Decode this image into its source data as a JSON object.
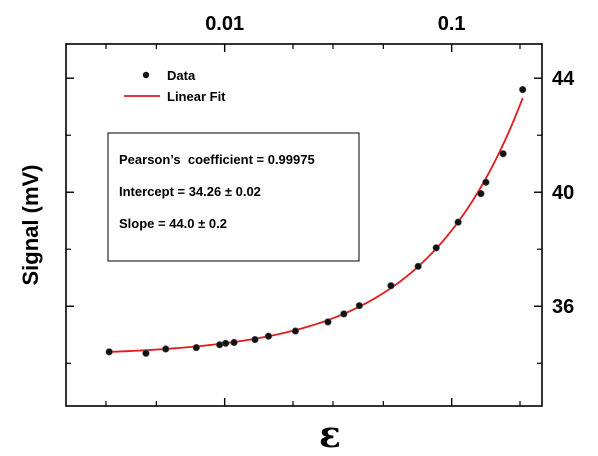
{
  "chart_data": {
    "type": "scatter",
    "x_scale": "log",
    "xlim": [
      0.002,
      0.25
    ],
    "ylim": [
      32.5,
      45.2
    ],
    "xlabel": "ε",
    "ylabel": "Signal (mV)",
    "x_tick_labels": [
      {
        "value": 0.01,
        "label": "0.01"
      },
      {
        "value": 0.1,
        "label": "0.1"
      }
    ],
    "x_minor_ticks": [
      0.003,
      0.005,
      0.02,
      0.03,
      0.05,
      0.2
    ],
    "y_tick_labels": [
      {
        "value": 36,
        "label": "36"
      },
      {
        "value": 40,
        "label": "40"
      },
      {
        "value": 44,
        "label": "44"
      }
    ],
    "y_minor_ticks": [
      34,
      38,
      42
    ],
    "series": [
      {
        "name": "Data",
        "kind": "points",
        "color": "#111111",
        "x": [
          0.0031,
          0.0045,
          0.0055,
          0.0075,
          0.0095,
          0.0101,
          0.011,
          0.0136,
          0.0156,
          0.0205,
          0.0285,
          0.0335,
          0.0392,
          0.054,
          0.0712,
          0.0855,
          0.1068,
          0.1345,
          0.1415,
          0.1685,
          0.2055
        ],
        "y": [
          34.4,
          34.35,
          34.5,
          34.55,
          34.65,
          34.7,
          34.73,
          34.83,
          34.95,
          35.13,
          35.45,
          35.73,
          36.02,
          36.72,
          37.4,
          38.05,
          38.95,
          39.95,
          40.35,
          41.35,
          43.6
        ]
      },
      {
        "name": "Linear Fit",
        "kind": "line",
        "color": "#e41a1c",
        "intercept": 34.26,
        "slope": 44.0
      }
    ],
    "legend_position": "top-left",
    "grid": false,
    "annotation": {
      "lines": [
        "Pearson’s  coefficient = 0.99975",
        "Intercept = 34.26 ± 0.02",
        "Slope = 44.0 ± 0.2"
      ]
    }
  }
}
